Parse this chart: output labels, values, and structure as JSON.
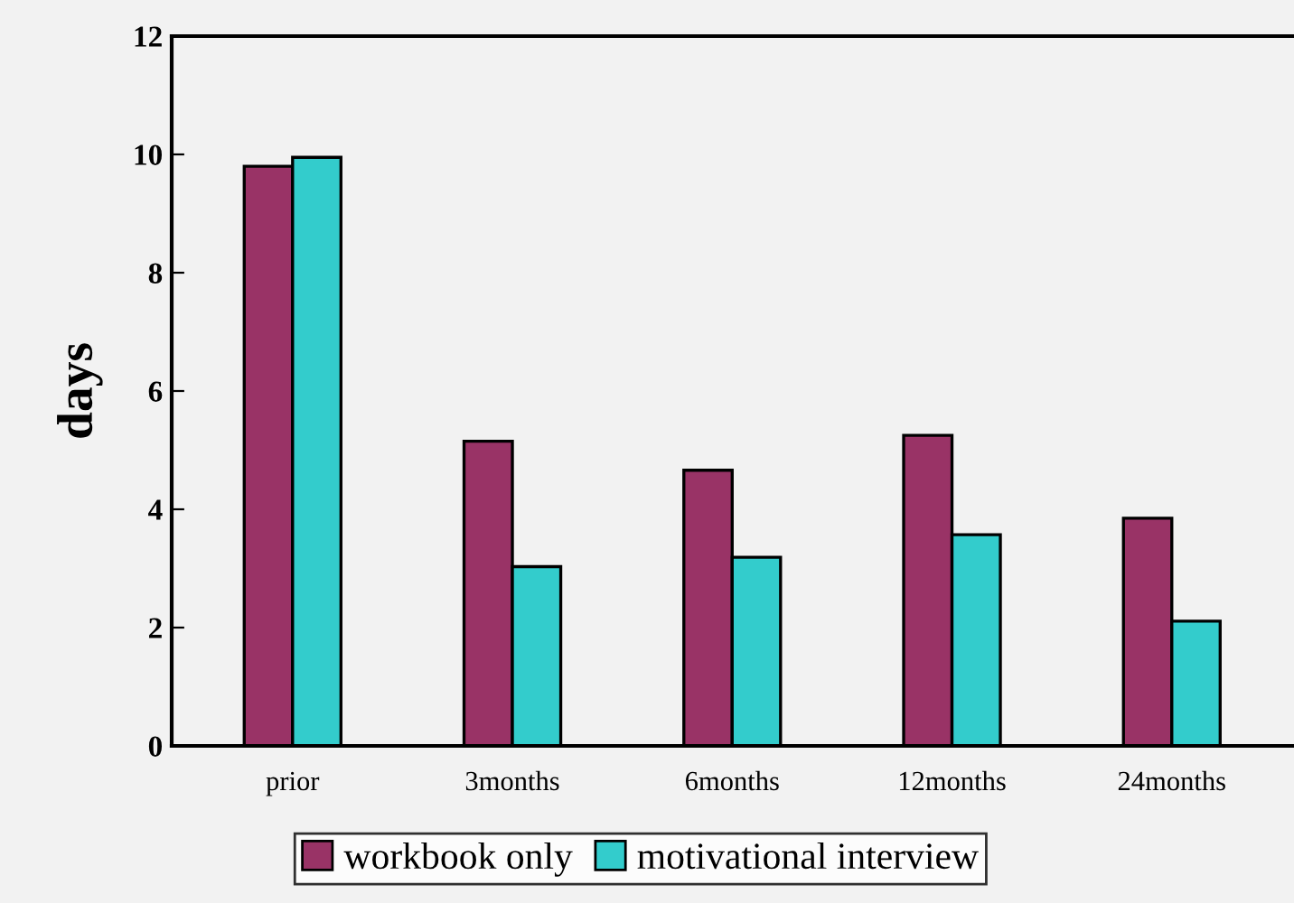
{
  "chart_data": {
    "type": "bar",
    "ylabel": "days",
    "categories": [
      "prior",
      "3months",
      "6months",
      "12months",
      "24months"
    ],
    "series": [
      {
        "name": "workbook only",
        "color": "#993366",
        "values": [
          9.8,
          5.15,
          4.66,
          5.25,
          3.85
        ]
      },
      {
        "name": "motivational interview",
        "color": "#33cccc",
        "values": [
          9.95,
          3.03,
          3.19,
          3.57,
          2.11
        ]
      }
    ],
    "ylim": [
      0,
      12
    ],
    "yticks": [
      0,
      2,
      4,
      6,
      8,
      10,
      12
    ],
    "grid": false,
    "legend": "bottom"
  }
}
